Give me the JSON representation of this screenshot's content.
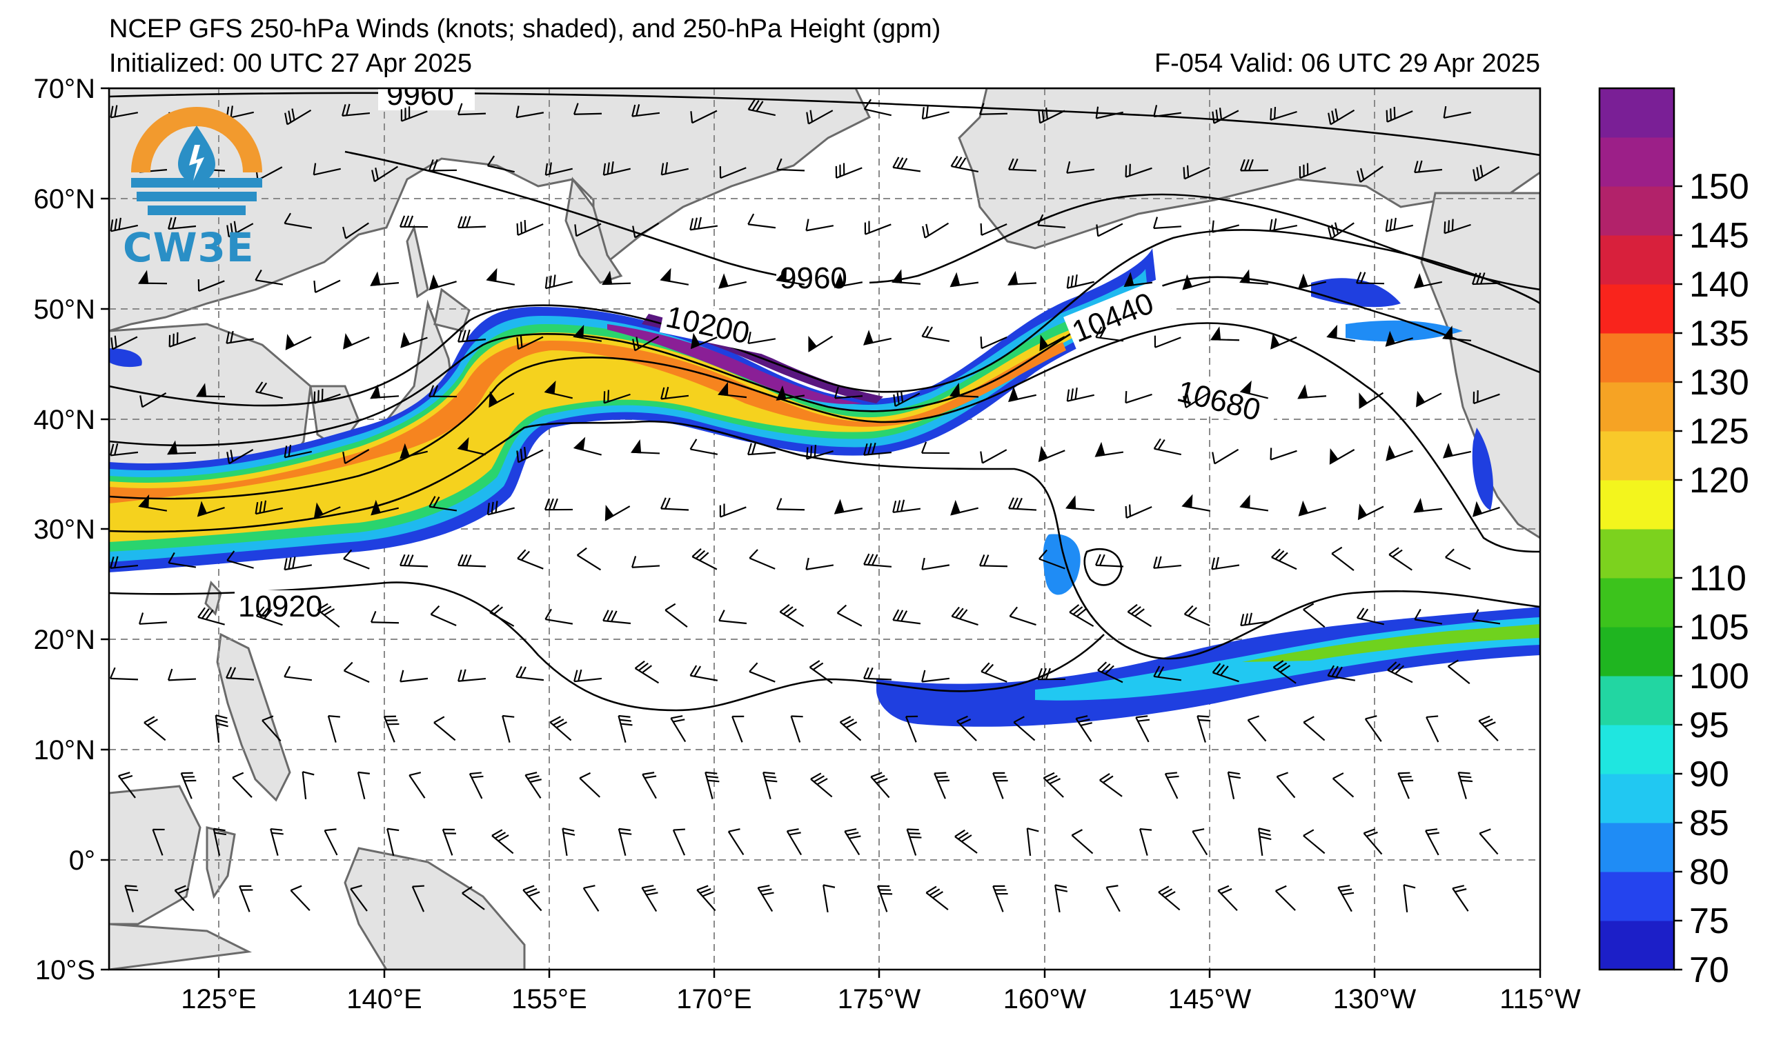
{
  "header": {
    "title": "NCEP GFS 250-hPa Winds (knots; shaded), and 250-hPa Height (gpm)",
    "initialized": "Initialized: 00 UTC 27 Apr 2025",
    "valid": "F-054  Valid: 06 UTC 29 Apr 2025"
  },
  "logo": {
    "text": "CW3E",
    "icon": "water-drop-sun-logo-icon"
  },
  "axes": {
    "lat_labels": [
      "70°N",
      "60°N",
      "50°N",
      "40°N",
      "30°N",
      "20°N",
      "10°N",
      "0°",
      "10°S"
    ],
    "lon_labels": [
      "125°E",
      "140°E",
      "155°E",
      "170°E",
      "175°W",
      "160°W",
      "145°W",
      "130°W",
      "115°W"
    ],
    "lat_range": [
      -10,
      70
    ],
    "lon_range_east": [
      115,
      245
    ]
  },
  "colorbar": {
    "ticks": [
      "70",
      "75",
      "80",
      "85",
      "90",
      "95",
      "100",
      "105",
      "110",
      "120",
      "125",
      "130",
      "135",
      "140",
      "145",
      "150"
    ],
    "colors": [
      "#1c1fc8",
      "#2444ee",
      "#1f8cf5",
      "#21c8f2",
      "#1fe6e0",
      "#22d6a2",
      "#1fb520",
      "#3cc31c",
      "#7cd21e",
      "#f3f51d",
      "#f8c92a",
      "#f6a324",
      "#f77a20",
      "#f9241c",
      "#d8203c",
      "#b2226a",
      "#9c1f88",
      "#7a1f96"
    ]
  },
  "contour_labels": [
    "9960",
    "9960",
    "10200",
    "10440",
    "10680",
    "10920"
  ],
  "colors": {
    "land": "#e3e3e3",
    "coast": "#6a6a6a",
    "grid": "#8a8a8a"
  }
}
